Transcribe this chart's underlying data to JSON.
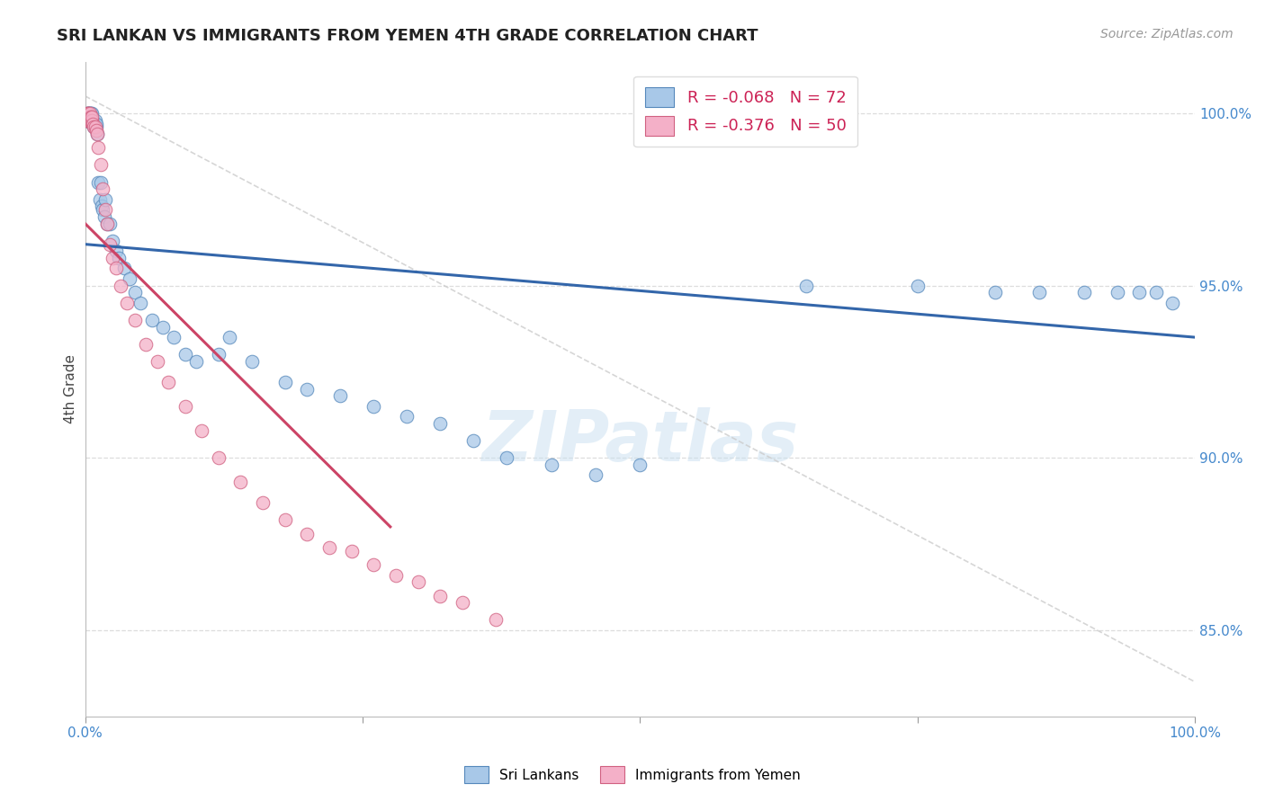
{
  "title": "SRI LANKAN VS IMMIGRANTS FROM YEMEN 4TH GRADE CORRELATION CHART",
  "source": "Source: ZipAtlas.com",
  "ylabel": "4th Grade",
  "ytick_labels": [
    "100.0%",
    "95.0%",
    "90.0%",
    "85.0%"
  ],
  "ytick_values": [
    1.0,
    0.95,
    0.9,
    0.85
  ],
  "xmin": 0.0,
  "xmax": 1.0,
  "ymin": 0.825,
  "ymax": 1.015,
  "legend_R1": "R = -0.068",
  "legend_N1": "N = 72",
  "legend_R2": "R = -0.376",
  "legend_N2": "N = 50",
  "color_blue": "#a8c8e8",
  "color_pink": "#f4b0c8",
  "color_blue_edge": "#5588bb",
  "color_pink_edge": "#d06080",
  "color_blue_line": "#3366aa",
  "color_pink_line": "#cc4466",
  "color_diagonal": "#cccccc",
  "watermark": "ZIPatlas",
  "blue_scatter_x": [
    0.001,
    0.001,
    0.002,
    0.002,
    0.002,
    0.003,
    0.003,
    0.003,
    0.003,
    0.004,
    0.004,
    0.004,
    0.004,
    0.005,
    0.005,
    0.005,
    0.006,
    0.006,
    0.006,
    0.007,
    0.007,
    0.008,
    0.008,
    0.009,
    0.009,
    0.01,
    0.01,
    0.011,
    0.012,
    0.013,
    0.014,
    0.015,
    0.016,
    0.017,
    0.018,
    0.02,
    0.022,
    0.025,
    0.028,
    0.03,
    0.035,
    0.04,
    0.045,
    0.05,
    0.06,
    0.07,
    0.08,
    0.09,
    0.1,
    0.12,
    0.13,
    0.15,
    0.18,
    0.2,
    0.23,
    0.26,
    0.29,
    0.32,
    0.35,
    0.38,
    0.42,
    0.46,
    0.5,
    0.65,
    0.75,
    0.82,
    0.86,
    0.9,
    0.93,
    0.95,
    0.965,
    0.98
  ],
  "blue_scatter_y": [
    0.998,
    0.999,
    0.998,
    0.999,
    1.0,
    0.998,
    0.999,
    1.0,
    1.0,
    0.998,
    0.999,
    1.0,
    1.0,
    0.998,
    0.999,
    1.0,
    0.998,
    0.999,
    1.0,
    0.997,
    0.998,
    0.996,
    0.997,
    0.997,
    0.998,
    0.996,
    0.997,
    0.994,
    0.98,
    0.975,
    0.98,
    0.973,
    0.972,
    0.97,
    0.975,
    0.968,
    0.968,
    0.963,
    0.96,
    0.958,
    0.955,
    0.952,
    0.948,
    0.945,
    0.94,
    0.938,
    0.935,
    0.93,
    0.928,
    0.93,
    0.935,
    0.928,
    0.922,
    0.92,
    0.918,
    0.915,
    0.912,
    0.91,
    0.905,
    0.9,
    0.898,
    0.895,
    0.898,
    0.95,
    0.95,
    0.948,
    0.948,
    0.948,
    0.948,
    0.948,
    0.948,
    0.945
  ],
  "pink_scatter_x": [
    0.001,
    0.001,
    0.002,
    0.002,
    0.002,
    0.003,
    0.003,
    0.003,
    0.003,
    0.004,
    0.004,
    0.004,
    0.005,
    0.005,
    0.006,
    0.006,
    0.007,
    0.008,
    0.009,
    0.01,
    0.011,
    0.012,
    0.014,
    0.016,
    0.018,
    0.02,
    0.022,
    0.025,
    0.028,
    0.032,
    0.038,
    0.045,
    0.055,
    0.065,
    0.075,
    0.09,
    0.105,
    0.12,
    0.14,
    0.16,
    0.18,
    0.2,
    0.22,
    0.24,
    0.26,
    0.28,
    0.3,
    0.32,
    0.34,
    0.37
  ],
  "pink_scatter_y": [
    0.998,
    0.999,
    0.998,
    0.999,
    1.0,
    0.998,
    0.999,
    1.0,
    1.0,
    0.998,
    0.999,
    1.0,
    0.998,
    0.999,
    0.998,
    0.999,
    0.997,
    0.996,
    0.996,
    0.995,
    0.994,
    0.99,
    0.985,
    0.978,
    0.972,
    0.968,
    0.962,
    0.958,
    0.955,
    0.95,
    0.945,
    0.94,
    0.933,
    0.928,
    0.922,
    0.915,
    0.908,
    0.9,
    0.893,
    0.887,
    0.882,
    0.878,
    0.874,
    0.873,
    0.869,
    0.866,
    0.864,
    0.86,
    0.858,
    0.853
  ],
  "blue_line_x0": 0.0,
  "blue_line_x1": 1.0,
  "blue_line_y0": 0.962,
  "blue_line_y1": 0.935,
  "pink_line_x0": 0.0,
  "pink_line_x1": 0.275,
  "pink_line_y0": 0.968,
  "pink_line_y1": 0.88
}
